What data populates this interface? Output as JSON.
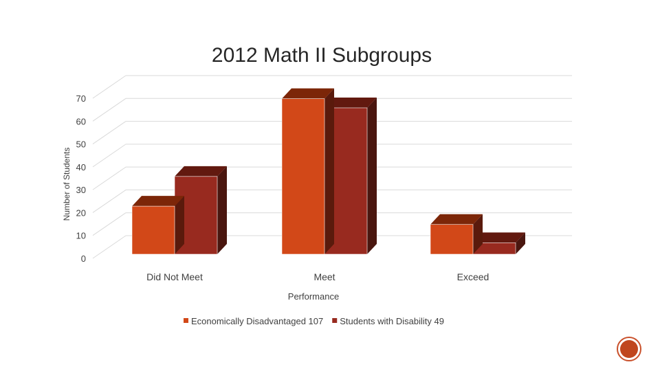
{
  "colors": {
    "series_front": [
      "#d24818",
      "#982a1f"
    ],
    "series_side": [
      "#5a1a0c",
      "#4a160f"
    ],
    "series_top": [
      "#7c2608",
      "#62190f"
    ],
    "grid": "#d9d9d9",
    "text": "#404040",
    "badge": "#c0461e"
  },
  "badge_icon": "circle-icon",
  "chart_data": {
    "type": "bar",
    "title": "2012 Math II Subgroups",
    "xlabel": "Performance",
    "ylabel": "Number of Students",
    "categories": [
      "Did Not Meet",
      "Meet",
      "Exceed"
    ],
    "series": [
      {
        "name": "Economically Disadvantaged 107",
        "values": [
          21,
          68,
          13
        ]
      },
      {
        "name": "Students with Disability 49",
        "values": [
          34,
          64,
          5
        ]
      }
    ],
    "ylim": [
      0,
      70
    ],
    "yticks": [
      "0",
      "10",
      "20",
      "30",
      "40",
      "50",
      "60",
      "70"
    ],
    "grid": true,
    "legend": "bottom",
    "style": "3d-clustered"
  }
}
